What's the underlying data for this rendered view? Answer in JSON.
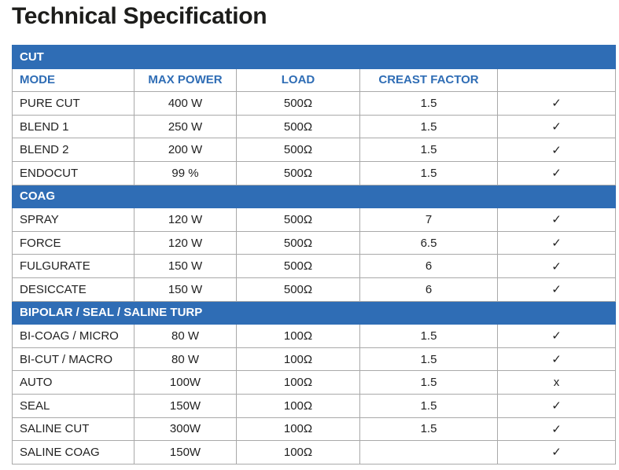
{
  "header": {
    "title": "Technical Specification"
  },
  "table": {
    "headers": [
      "MODE",
      "MAX POWER",
      "LOAD",
      "CREAST FACTOR"
    ],
    "sections": [
      {
        "title": "CUT",
        "rows": [
          {
            "mode": "PURE CUT",
            "max_power": "400 W",
            "load": "500Ω",
            "crest_factor": "1.5",
            "check": "✓"
          },
          {
            "mode": "BLEND 1",
            "max_power": "250 W",
            "load": "500Ω",
            "crest_factor": "1.5",
            "check": "✓"
          },
          {
            "mode": "BLEND 2",
            "max_power": "200 W",
            "load": "500Ω",
            "crest_factor": "1.5",
            "check": "✓"
          },
          {
            "mode": "ENDOCUT",
            "max_power": "99 %",
            "load": "500Ω",
            "crest_factor": "1.5",
            "check": "✓"
          }
        ]
      },
      {
        "title": "COAG",
        "rows": [
          {
            "mode": "SPRAY",
            "max_power": "120 W",
            "load": "500Ω",
            "crest_factor": "7",
            "check": "✓"
          },
          {
            "mode": "FORCE",
            "max_power": "120 W",
            "load": "500Ω",
            "crest_factor": "6.5",
            "check": "✓"
          },
          {
            "mode": "FULGURATE",
            "max_power": "150 W",
            "load": "500Ω",
            "crest_factor": "6",
            "check": "✓"
          },
          {
            "mode": "DESICCATE",
            "max_power": "150 W",
            "load": "500Ω",
            "crest_factor": "6",
            "check": "✓"
          }
        ]
      },
      {
        "title": "BIPOLAR / SEAL / SALINE TURP",
        "rows": [
          {
            "mode": "BI-COAG / MICRO",
            "max_power": "80 W",
            "load": "100Ω",
            "crest_factor": "1.5",
            "check": "✓"
          },
          {
            "mode": "BI-CUT / MACRO",
            "max_power": "80 W",
            "load": "100Ω",
            "crest_factor": "1.5",
            "check": "✓"
          },
          {
            "mode": "AUTO",
            "max_power": "100W",
            "load": "100Ω",
            "crest_factor": "1.5",
            "check": "x"
          },
          {
            "mode": "SEAL",
            "max_power": "150W",
            "load": "100Ω",
            "crest_factor": "1.5",
            "check": "✓"
          },
          {
            "mode": "SALINE CUT",
            "max_power": "300W",
            "load": "100Ω",
            "crest_factor": "1.5",
            "check": "✓"
          },
          {
            "mode": "SALINE COAG",
            "max_power": "150W",
            "load": "100Ω",
            "check": "✓"
          }
        ]
      }
    ]
  }
}
